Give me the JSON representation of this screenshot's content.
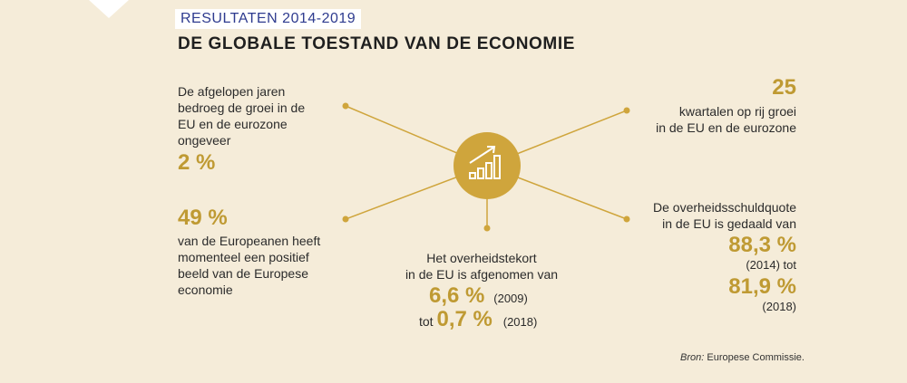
{
  "header": {
    "kicker": "RESULTATEN 2014-2019",
    "title": "DE GLOBALE TOESTAND VAN DE ECONOMIE"
  },
  "center_icon": "growth-chart-icon",
  "stats": {
    "growth": {
      "text": [
        "De afgelopen jaren",
        "bedroeg de groei in de",
        "EU en de eurozone",
        "ongeveer"
      ],
      "value": "2 %"
    },
    "quarters": {
      "value": "25",
      "text": [
        "kwartalen op rij groei",
        "in de EU en de eurozone"
      ]
    },
    "opinion": {
      "value": "49 %",
      "text": [
        "van de Europeanen heeft",
        "momenteel een positief",
        "beeld van de Europese",
        "economie"
      ]
    },
    "deficit": {
      "text": [
        "Het overheidstekort",
        "in de EU is afgenomen van"
      ],
      "value_from": "6,6 %",
      "year_from": "(2009)",
      "tot": "tot",
      "value_to": "0,7 %",
      "year_to": "(2018)"
    },
    "debt": {
      "text": [
        "De overheidsschuldquote",
        "in de EU is gedaald van"
      ],
      "value_from": "88,3 %",
      "year_from": "(2014) tot",
      "value_to": "81,9 %",
      "year_to": "(2018)"
    }
  },
  "source": {
    "label": "Bron:",
    "text": "Europese Commissie."
  },
  "colors": {
    "background": "#f5ecd9",
    "accent_gold": "#bf9a33",
    "hub_gold": "#cfa53c",
    "kicker_blue": "#2e3b8f"
  }
}
